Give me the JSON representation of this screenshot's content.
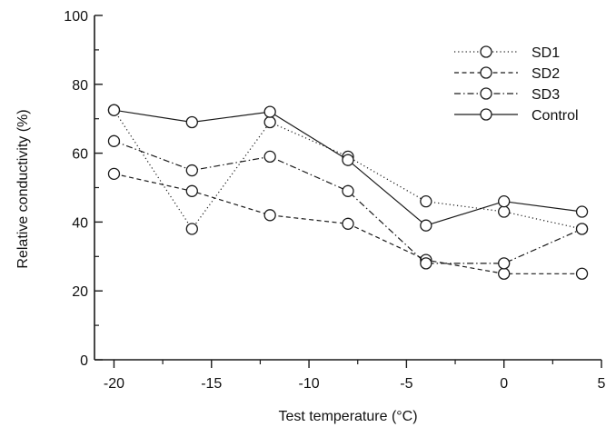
{
  "chart_data": {
    "type": "line",
    "xlabel": "Test temperature (°C)",
    "ylabel": "Relative conductivity (%)",
    "xlim": [
      -21,
      5
    ],
    "ylim": [
      0,
      100
    ],
    "x_ticks": [
      -20,
      -15,
      -10,
      -5,
      0,
      5
    ],
    "x_tick_labels": [
      "-20",
      "-15",
      "-10",
      "-5",
      "0",
      "5"
    ],
    "y_ticks": [
      0,
      20,
      40,
      60,
      80,
      100
    ],
    "y_tick_labels": [
      "0",
      "20",
      "40",
      "60",
      "80",
      "100"
    ],
    "grid": false,
    "legend_position": "top-right",
    "x": [
      -20,
      -16,
      -12,
      -8,
      -4,
      0,
      4
    ],
    "series": [
      {
        "name": "SD1",
        "line_style": "dotted",
        "values": [
          72.5,
          38,
          69,
          59,
          46,
          43,
          38
        ]
      },
      {
        "name": "SD2",
        "line_style": "dashed",
        "values": [
          54,
          49,
          42,
          39.5,
          29,
          25,
          25
        ]
      },
      {
        "name": "SD3",
        "line_style": "dash-dot",
        "values": [
          63.5,
          55,
          59,
          49,
          28,
          28,
          38
        ]
      },
      {
        "name": "Control",
        "line_style": "solid",
        "values": [
          72.5,
          69,
          72,
          58,
          39,
          46,
          43
        ]
      }
    ],
    "colors": {
      "ink": "#1a1a1a",
      "background": "#ffffff"
    }
  }
}
